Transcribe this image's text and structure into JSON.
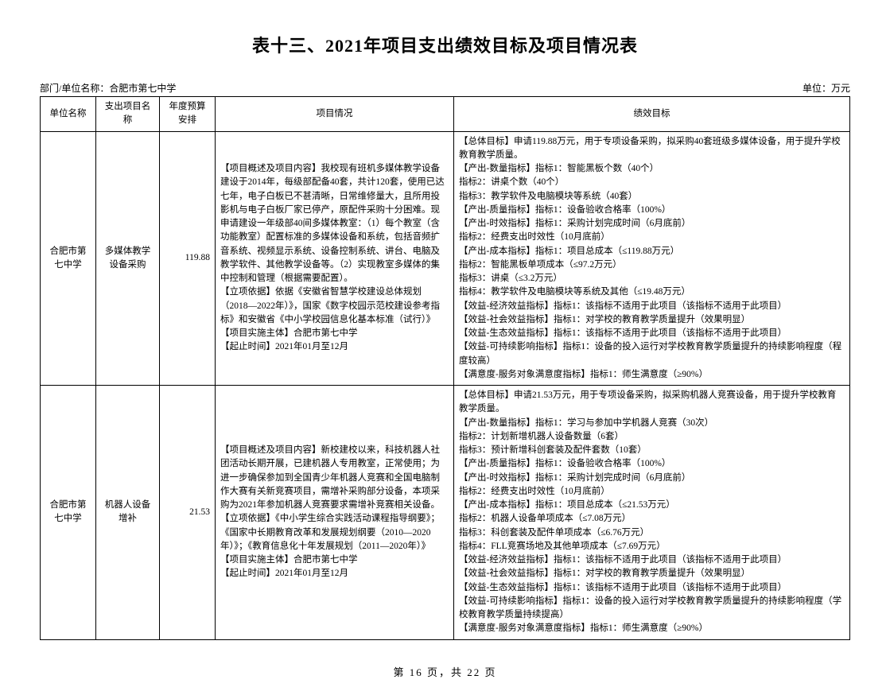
{
  "title": "表十三、2021年项目支出绩效目标及项目情况表",
  "meta": {
    "org_label": "部门/单位名称：合肥市第七中学",
    "unit_label": "单位：万元"
  },
  "columns": {
    "c1": "单位名称",
    "c2": "支出项目名称",
    "c3": "年度预算安排",
    "c4": "项目情况",
    "c5": "绩效目标"
  },
  "rows": [
    {
      "unit": "合肥市第七中学",
      "item": "多媒体教学设备采购",
      "budget": "119.88",
      "desc": "【项目概述及项目内容】我校现有班机多媒体教学设备建设于2014年，每级部配备40套，共计120套，使用已达七年，电子白板已不甚清晰，日常维修量大，且所用投影机与电子白板厂家已停产，原配件采购十分困难。现申请建设一年级部40间多媒体教室：（1）每个教室（含功能教室）配置标准的多媒体设备和系统，包括音频扩音系统、视频显示系统、设备控制系统、讲台、电脑及教学软件、其他教学设备等。（2）实现教室多媒体的集中控制和管理（根据需要配置）。\n【立项依据】依据《安徽省智慧学校建设总体规划（2018—2022年）》，国家《数字校园示范校建设参考指标》和安徽省《中小学校园信息化基本标准（试行）》\n【项目实施主体】合肥市第七中学\n【起止时间】2021年01月至12月",
      "goal": "【总体目标】申请119.88万元，用于专项设备采购，拟采购40套班级多媒体设备，用于提升学校教育教学质量。\n【产出-数量指标】指标1：智能黑板个数（40个）\n指标2：讲桌个数（40个）\n指标3：教学软件及电脑模块等系统（40套）\n【产出-质量指标】指标1：设备验收合格率（100%）\n【产出-时效指标】指标1：采购计划完成时间（6月底前）\n指标2：经费支出时效性（10月底前）\n【产出-成本指标】指标1：项目总成本（≤119.88万元）\n指标2：智能黑板单项成本（≤97.2万元）\n指标3：讲桌（≤3.2万元）\n指标4：教学软件及电脑模块等系统及其他（≤19.48万元）\n【效益-经济效益指标】指标1：该指标不适用于此项目（该指标不适用于此项目）\n【效益-社会效益指标】指标1：对学校的教育教学质量提升（效果明显）\n【效益-生态效益指标】指标1：该指标不适用于此项目（该指标不适用于此项目）\n【效益-可持续影响指标】指标1：设备的投入运行对学校教育教学质量提升的持续影响程度（程度较高）\n【满意度-服务对象满意度指标】指标1：师生满意度（≥90%）"
    },
    {
      "unit": "合肥市第七中学",
      "item": "机器人设备增补",
      "budget": "21.53",
      "desc": "【项目概述及项目内容】新校建校以来，科技机器人社团活动长期开展，已建机器人专用教室，正常使用；为进一步确保参加到全国青少年机器人竞赛和全国电脑制作大赛有关新竞赛项目，需增补采购部分设备，本项采购为2021年参加机器人竞赛要求需增补竞赛相关设备。\n【立项依据】《中小学生综合实践活动课程指导纲要》；《国家中长期教育改革和发展规划纲要（2010—2020年）》；《教育信息化十年发展规划（2011—2020年）》\n【项目实施主体】合肥市第七中学\n【起止时间】2021年01月至12月",
      "goal": "【总体目标】申请21.53万元，用于专项设备采购，拟采购机器人竞赛设备，用于提升学校教育教学质量。\n【产出-数量指标】指标1：学习与参加中学机器人竞赛（30次）\n指标2：计划新增机器人设备数量（6套）\n指标3：预计新增科创套装及配件套数（10套）\n【产出-质量指标】指标1：设备验收合格率（100%）\n【产出-时效指标】指标1：采购计划完成时间（6月底前）\n指标2：经费支出时效性（10月底前）\n【产出-成本指标】指标1：项目总成本（≤21.53万元）\n指标2：机器人设备单项成本（≤7.08万元）\n指标3：科创套装及配件单项成本（≤6.76万元）\n指标4：FLL竞赛场地及其他单项成本（≤7.69万元）\n【效益-经济效益指标】指标1：该指标不适用于此项目（该指标不适用于此项目）\n【效益-社会效益指标】指标1：对学校的教育教学质量提升（效果明显）\n【效益-生态效益指标】指标1：该指标不适用于此项目（该指标不适用于此项目）\n【效益-可持续影响指标】指标1：设备的投入运行对学校教育教学质量提升的持续影响程度（学校教育教学质量持续提高）\n【满意度-服务对象满意度指标】指标1：师生满意度（≥90%）"
    }
  ],
  "footer": "第 16 页，共 22 页"
}
